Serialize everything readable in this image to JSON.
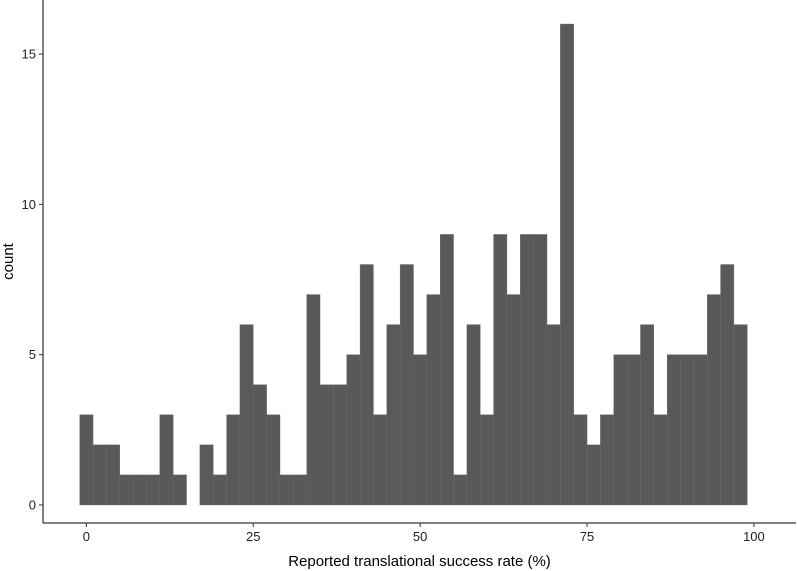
{
  "chart_data": {
    "type": "bar",
    "title": "",
    "xlabel": "Reported translational success rate (%)",
    "ylabel": "count",
    "xlim": [
      -6.5,
      106.3
    ],
    "ylim": [
      -0.6,
      16.8
    ],
    "bin_width": 2,
    "bin_start": -1,
    "x_ticks": [
      0,
      25,
      50,
      75,
      100
    ],
    "y_ticks": [
      0,
      5,
      10,
      15
    ],
    "x_tick_labels": [
      "0",
      "25",
      "50",
      "75",
      "100"
    ],
    "y_tick_labels": [
      "0",
      "5",
      "10",
      "15"
    ],
    "values": [
      3,
      2,
      2,
      1,
      1,
      1,
      3,
      1,
      0,
      2,
      1,
      3,
      6,
      4,
      3,
      1,
      1,
      7,
      4,
      4,
      5,
      8,
      3,
      6,
      8,
      5,
      7,
      9,
      1,
      6,
      3,
      9,
      7,
      9,
      9,
      6,
      16,
      3,
      2,
      3,
      5,
      5,
      6,
      3,
      5,
      5,
      5,
      7,
      8,
      6
    ],
    "grid": false,
    "legend": "none",
    "bar_color": "#595959",
    "axis_color": "#000000"
  }
}
